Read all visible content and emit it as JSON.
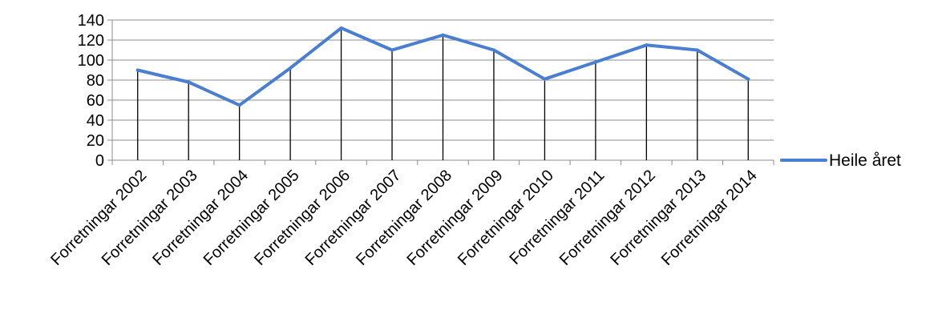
{
  "chart_data": {
    "type": "line",
    "categories": [
      "Forretningar 2002",
      "Forretningar 2003",
      "Forretningar 2004",
      "Forretningar 2005",
      "Forretningar 2006",
      "Forretningar 2007",
      "Forretningar 2008",
      "Forretningar 2009",
      "Forretningar 2010",
      "Forretningar 2011",
      "Forretningar 2012",
      "Forretningar 2013",
      "Forretningar 2014"
    ],
    "series": [
      {
        "name": "Heile året",
        "values": [
          90,
          78,
          55,
          92,
          132,
          110,
          125,
          110,
          81,
          98,
          115,
          110,
          81
        ],
        "color": "#4a7ed0"
      }
    ],
    "yticks": [
      "0",
      "20",
      "40",
      "60",
      "80",
      "100",
      "120",
      "140"
    ],
    "ylim": [
      0,
      140
    ],
    "grid": true,
    "drop_lines": true,
    "legend": {
      "position": "right"
    }
  }
}
